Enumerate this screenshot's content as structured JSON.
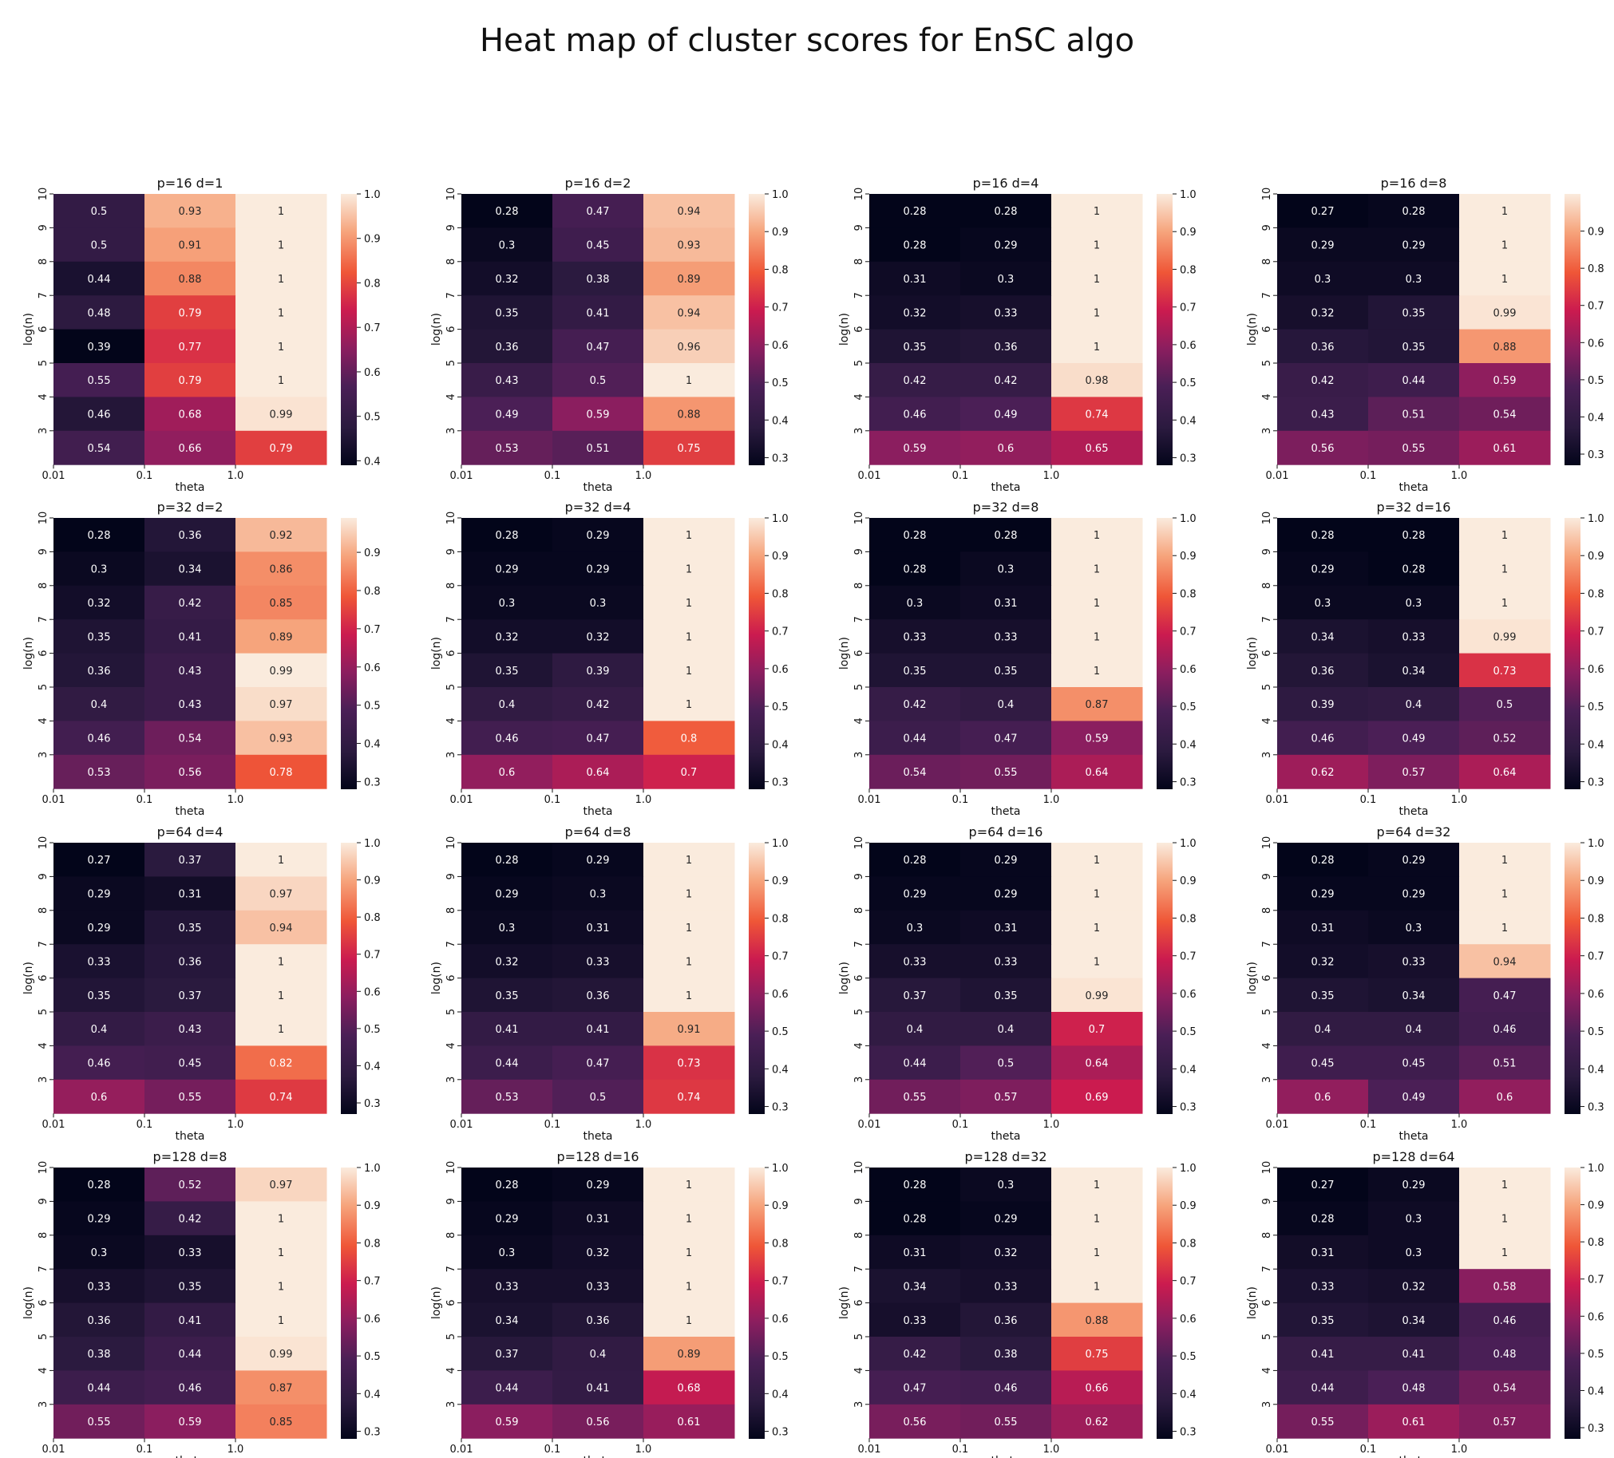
{
  "figure": {
    "title": "Heat map of cluster scores for EnSC algo"
  },
  "chart_data": [
    {
      "type": "heatmap",
      "title": "p=16 d=1",
      "xlabel": "theta",
      "ylabel": "log(n)",
      "x_tick_labels": [
        "0.01",
        "0.1",
        "1.0"
      ],
      "y_tick_labels": [
        "10",
        "9",
        "8",
        "7",
        "6",
        "5",
        "4",
        "3"
      ],
      "colorbar": {
        "min": 0.39,
        "max": 1.0,
        "ticks": [
          "0.4",
          "0.5",
          "0.6",
          "0.7",
          "0.8",
          "0.9",
          "1.0"
        ]
      },
      "values": [
        [
          0.5,
          0.93,
          1
        ],
        [
          0.5,
          0.91,
          1
        ],
        [
          0.44,
          0.88,
          1
        ],
        [
          0.48,
          0.79,
          1
        ],
        [
          0.39,
          0.77,
          1
        ],
        [
          0.55,
          0.79,
          1
        ],
        [
          0.46,
          0.68,
          0.99
        ],
        [
          0.54,
          0.66,
          0.79
        ]
      ]
    },
    {
      "type": "heatmap",
      "title": "p=16 d=2",
      "xlabel": "theta",
      "ylabel": "log(n)",
      "x_tick_labels": [
        "0.01",
        "0.1",
        "1.0"
      ],
      "y_tick_labels": [
        "10",
        "9",
        "8",
        "7",
        "6",
        "5",
        "4",
        "3"
      ],
      "colorbar": {
        "min": 0.28,
        "max": 1.0,
        "ticks": [
          "0.3",
          "0.4",
          "0.5",
          "0.6",
          "0.7",
          "0.8",
          "0.9",
          "1.0"
        ]
      },
      "values": [
        [
          0.28,
          0.47,
          0.94
        ],
        [
          0.3,
          0.45,
          0.93
        ],
        [
          0.32,
          0.38,
          0.89
        ],
        [
          0.35,
          0.41,
          0.94
        ],
        [
          0.36,
          0.47,
          0.96
        ],
        [
          0.43,
          0.5,
          1
        ],
        [
          0.49,
          0.59,
          0.88
        ],
        [
          0.53,
          0.51,
          0.75
        ]
      ]
    },
    {
      "type": "heatmap",
      "title": "p=16 d=4",
      "xlabel": "theta",
      "ylabel": "log(n)",
      "x_tick_labels": [
        "0.01",
        "0.1",
        "1.0"
      ],
      "y_tick_labels": [
        "10",
        "9",
        "8",
        "7",
        "6",
        "5",
        "4",
        "3"
      ],
      "colorbar": {
        "min": 0.28,
        "max": 1.0,
        "ticks": [
          "0.3",
          "0.4",
          "0.5",
          "0.6",
          "0.7",
          "0.8",
          "0.9",
          "1.0"
        ]
      },
      "values": [
        [
          0.28,
          0.28,
          1
        ],
        [
          0.28,
          0.29,
          1
        ],
        [
          0.31,
          0.3,
          1
        ],
        [
          0.32,
          0.33,
          1
        ],
        [
          0.35,
          0.36,
          1
        ],
        [
          0.42,
          0.42,
          0.98
        ],
        [
          0.46,
          0.49,
          0.74
        ],
        [
          0.59,
          0.6,
          0.65
        ]
      ]
    },
    {
      "type": "heatmap",
      "title": "p=16 d=8",
      "xlabel": "theta",
      "ylabel": "log(n)",
      "x_tick_labels": [
        "0.01",
        "0.1",
        "1.0"
      ],
      "y_tick_labels": [
        "10",
        "9",
        "8",
        "7",
        "6",
        "5",
        "4",
        "3"
      ],
      "colorbar": {
        "min": 0.27,
        "max": 1.0,
        "ticks": [
          "0.3",
          "0.4",
          "0.5",
          "0.6",
          "0.7",
          "0.8",
          "0.9"
        ]
      },
      "values": [
        [
          0.27,
          0.28,
          1
        ],
        [
          0.29,
          0.29,
          1
        ],
        [
          0.3,
          0.3,
          1
        ],
        [
          0.32,
          0.35,
          0.99
        ],
        [
          0.36,
          0.35,
          0.88
        ],
        [
          0.42,
          0.44,
          0.59
        ],
        [
          0.43,
          0.51,
          0.54
        ],
        [
          0.56,
          0.55,
          0.61
        ]
      ]
    },
    {
      "type": "heatmap",
      "title": "p=32 d=2",
      "xlabel": "theta",
      "ylabel": "log(n)",
      "x_tick_labels": [
        "0.01",
        "0.1",
        "1.0"
      ],
      "y_tick_labels": [
        "10",
        "9",
        "8",
        "7",
        "6",
        "5",
        "4",
        "3"
      ],
      "colorbar": {
        "min": 0.28,
        "max": 0.99,
        "ticks": [
          "0.3",
          "0.4",
          "0.5",
          "0.6",
          "0.7",
          "0.8",
          "0.9"
        ]
      },
      "values": [
        [
          0.28,
          0.36,
          0.92
        ],
        [
          0.3,
          0.34,
          0.86
        ],
        [
          0.32,
          0.42,
          0.85
        ],
        [
          0.35,
          0.41,
          0.89
        ],
        [
          0.36,
          0.43,
          0.99
        ],
        [
          0.4,
          0.43,
          0.97
        ],
        [
          0.46,
          0.54,
          0.93
        ],
        [
          0.53,
          0.56,
          0.78
        ]
      ]
    },
    {
      "type": "heatmap",
      "title": "p=32 d=4",
      "xlabel": "theta",
      "ylabel": "log(n)",
      "x_tick_labels": [
        "0.01",
        "0.1",
        "1.0"
      ],
      "y_tick_labels": [
        "10",
        "9",
        "8",
        "7",
        "6",
        "5",
        "4",
        "3"
      ],
      "colorbar": {
        "min": 0.28,
        "max": 1.0,
        "ticks": [
          "0.3",
          "0.4",
          "0.5",
          "0.6",
          "0.7",
          "0.8",
          "0.9",
          "1.0"
        ]
      },
      "values": [
        [
          0.28,
          0.29,
          1
        ],
        [
          0.29,
          0.29,
          1
        ],
        [
          0.3,
          0.3,
          1
        ],
        [
          0.32,
          0.32,
          1
        ],
        [
          0.35,
          0.39,
          1
        ],
        [
          0.4,
          0.42,
          1
        ],
        [
          0.46,
          0.47,
          0.8
        ],
        [
          0.6,
          0.64,
          0.7
        ]
      ]
    },
    {
      "type": "heatmap",
      "title": "p=32 d=8",
      "xlabel": "theta",
      "ylabel": "log(n)",
      "x_tick_labels": [
        "0.01",
        "0.1",
        "1.0"
      ],
      "y_tick_labels": [
        "10",
        "9",
        "8",
        "7",
        "6",
        "5",
        "4",
        "3"
      ],
      "colorbar": {
        "min": 0.28,
        "max": 1.0,
        "ticks": [
          "0.3",
          "0.4",
          "0.5",
          "0.6",
          "0.7",
          "0.8",
          "0.9",
          "1.0"
        ]
      },
      "values": [
        [
          0.28,
          0.28,
          1
        ],
        [
          0.28,
          0.3,
          1
        ],
        [
          0.3,
          0.31,
          1
        ],
        [
          0.33,
          0.33,
          1
        ],
        [
          0.35,
          0.35,
          1
        ],
        [
          0.42,
          0.4,
          0.87
        ],
        [
          0.44,
          0.47,
          0.59
        ],
        [
          0.54,
          0.55,
          0.64
        ]
      ]
    },
    {
      "type": "heatmap",
      "title": "p=32 d=16",
      "xlabel": "theta",
      "ylabel": "log(n)",
      "x_tick_labels": [
        "0.01",
        "0.1",
        "1.0"
      ],
      "y_tick_labels": [
        "10",
        "9",
        "8",
        "7",
        "6",
        "5",
        "4",
        "3"
      ],
      "colorbar": {
        "min": 0.28,
        "max": 1.0,
        "ticks": [
          "0.3",
          "0.4",
          "0.5",
          "0.6",
          "0.7",
          "0.8",
          "0.9",
          "1.0"
        ]
      },
      "values": [
        [
          0.28,
          0.28,
          1
        ],
        [
          0.29,
          0.28,
          1
        ],
        [
          0.3,
          0.3,
          1
        ],
        [
          0.34,
          0.33,
          0.99
        ],
        [
          0.36,
          0.34,
          0.73
        ],
        [
          0.39,
          0.4,
          0.5
        ],
        [
          0.46,
          0.49,
          0.52
        ],
        [
          0.62,
          0.57,
          0.64
        ]
      ]
    },
    {
      "type": "heatmap",
      "title": "p=64 d=4",
      "xlabel": "theta",
      "ylabel": "log(n)",
      "x_tick_labels": [
        "0.01",
        "0.1",
        "1.0"
      ],
      "y_tick_labels": [
        "10",
        "9",
        "8",
        "7",
        "6",
        "5",
        "4",
        "3"
      ],
      "colorbar": {
        "min": 0.27,
        "max": 1.0,
        "ticks": [
          "0.3",
          "0.4",
          "0.5",
          "0.6",
          "0.7",
          "0.8",
          "0.9",
          "1.0"
        ]
      },
      "values": [
        [
          0.27,
          0.37,
          1
        ],
        [
          0.29,
          0.31,
          0.97
        ],
        [
          0.29,
          0.35,
          0.94
        ],
        [
          0.33,
          0.36,
          1
        ],
        [
          0.35,
          0.37,
          1
        ],
        [
          0.4,
          0.43,
          1
        ],
        [
          0.46,
          0.45,
          0.82
        ],
        [
          0.6,
          0.55,
          0.74
        ]
      ]
    },
    {
      "type": "heatmap",
      "title": "p=64 d=8",
      "xlabel": "theta",
      "ylabel": "log(n)",
      "x_tick_labels": [
        "0.01",
        "0.1",
        "1.0"
      ],
      "y_tick_labels": [
        "10",
        "9",
        "8",
        "7",
        "6",
        "5",
        "4",
        "3"
      ],
      "colorbar": {
        "min": 0.28,
        "max": 1.0,
        "ticks": [
          "0.3",
          "0.4",
          "0.5",
          "0.6",
          "0.7",
          "0.8",
          "0.9",
          "1.0"
        ]
      },
      "values": [
        [
          0.28,
          0.29,
          1
        ],
        [
          0.29,
          0.3,
          1
        ],
        [
          0.3,
          0.31,
          1
        ],
        [
          0.32,
          0.33,
          1
        ],
        [
          0.35,
          0.36,
          1
        ],
        [
          0.41,
          0.41,
          0.91
        ],
        [
          0.44,
          0.47,
          0.73
        ],
        [
          0.53,
          0.5,
          0.74
        ]
      ]
    },
    {
      "type": "heatmap",
      "title": "p=64 d=16",
      "xlabel": "theta",
      "ylabel": "log(n)",
      "x_tick_labels": [
        "0.01",
        "0.1",
        "1.0"
      ],
      "y_tick_labels": [
        "10",
        "9",
        "8",
        "7",
        "6",
        "5",
        "4",
        "3"
      ],
      "colorbar": {
        "min": 0.28,
        "max": 1.0,
        "ticks": [
          "0.3",
          "0.4",
          "0.5",
          "0.6",
          "0.7",
          "0.8",
          "0.9",
          "1.0"
        ]
      },
      "values": [
        [
          0.28,
          0.29,
          1
        ],
        [
          0.29,
          0.29,
          1
        ],
        [
          0.3,
          0.31,
          1
        ],
        [
          0.33,
          0.33,
          1
        ],
        [
          0.37,
          0.35,
          0.99
        ],
        [
          0.4,
          0.4,
          0.7
        ],
        [
          0.44,
          0.5,
          0.64
        ],
        [
          0.55,
          0.57,
          0.69
        ]
      ]
    },
    {
      "type": "heatmap",
      "title": "p=64 d=32",
      "xlabel": "theta",
      "ylabel": "log(n)",
      "x_tick_labels": [
        "0.01",
        "0.1",
        "1.0"
      ],
      "y_tick_labels": [
        "10",
        "9",
        "8",
        "7",
        "6",
        "5",
        "4",
        "3"
      ],
      "colorbar": {
        "min": 0.28,
        "max": 1.0,
        "ticks": [
          "0.3",
          "0.4",
          "0.5",
          "0.6",
          "0.7",
          "0.8",
          "0.9",
          "1.0"
        ]
      },
      "values": [
        [
          0.28,
          0.29,
          1
        ],
        [
          0.29,
          0.29,
          1
        ],
        [
          0.31,
          0.3,
          1
        ],
        [
          0.32,
          0.33,
          0.94
        ],
        [
          0.35,
          0.34,
          0.47
        ],
        [
          0.4,
          0.4,
          0.46
        ],
        [
          0.45,
          0.45,
          0.51
        ],
        [
          0.6,
          0.49,
          0.6
        ]
      ]
    },
    {
      "type": "heatmap",
      "title": "p=128 d=8",
      "xlabel": "theta",
      "ylabel": "log(n)",
      "x_tick_labels": [
        "0.01",
        "0.1",
        "1.0"
      ],
      "y_tick_labels": [
        "10",
        "9",
        "8",
        "7",
        "6",
        "5",
        "4",
        "3"
      ],
      "colorbar": {
        "min": 0.28,
        "max": 1.0,
        "ticks": [
          "0.3",
          "0.4",
          "0.5",
          "0.6",
          "0.7",
          "0.8",
          "0.9",
          "1.0"
        ]
      },
      "values": [
        [
          0.28,
          0.52,
          0.97
        ],
        [
          0.29,
          0.42,
          1
        ],
        [
          0.3,
          0.33,
          1
        ],
        [
          0.33,
          0.35,
          1
        ],
        [
          0.36,
          0.41,
          1
        ],
        [
          0.38,
          0.44,
          0.99
        ],
        [
          0.44,
          0.46,
          0.87
        ],
        [
          0.55,
          0.59,
          0.85
        ]
      ]
    },
    {
      "type": "heatmap",
      "title": "p=128 d=16",
      "xlabel": "theta",
      "ylabel": "log(n)",
      "x_tick_labels": [
        "0.01",
        "0.1",
        "1.0"
      ],
      "y_tick_labels": [
        "10",
        "9",
        "8",
        "7",
        "6",
        "5",
        "4",
        "3"
      ],
      "colorbar": {
        "min": 0.28,
        "max": 1.0,
        "ticks": [
          "0.3",
          "0.4",
          "0.5",
          "0.6",
          "0.7",
          "0.8",
          "0.9",
          "1.0"
        ]
      },
      "values": [
        [
          0.28,
          0.29,
          1
        ],
        [
          0.29,
          0.31,
          1
        ],
        [
          0.3,
          0.32,
          1
        ],
        [
          0.33,
          0.33,
          1
        ],
        [
          0.34,
          0.36,
          1
        ],
        [
          0.37,
          0.4,
          0.89
        ],
        [
          0.44,
          0.41,
          0.68
        ],
        [
          0.59,
          0.56,
          0.61
        ]
      ]
    },
    {
      "type": "heatmap",
      "title": "p=128 d=32",
      "xlabel": "theta",
      "ylabel": "log(n)",
      "x_tick_labels": [
        "0.01",
        "0.1",
        "1.0"
      ],
      "y_tick_labels": [
        "10",
        "9",
        "8",
        "7",
        "6",
        "5",
        "4",
        "3"
      ],
      "colorbar": {
        "min": 0.28,
        "max": 1.0,
        "ticks": [
          "0.3",
          "0.4",
          "0.5",
          "0.6",
          "0.7",
          "0.8",
          "0.9",
          "1.0"
        ]
      },
      "values": [
        [
          0.28,
          0.3,
          1
        ],
        [
          0.28,
          0.29,
          1
        ],
        [
          0.31,
          0.32,
          1
        ],
        [
          0.34,
          0.33,
          1
        ],
        [
          0.33,
          0.36,
          0.88
        ],
        [
          0.42,
          0.38,
          0.75
        ],
        [
          0.47,
          0.46,
          0.66
        ],
        [
          0.56,
          0.55,
          0.62
        ]
      ]
    },
    {
      "type": "heatmap",
      "title": "p=128 d=64",
      "xlabel": "theta",
      "ylabel": "log(n)",
      "x_tick_labels": [
        "0.01",
        "0.1",
        "1.0"
      ],
      "y_tick_labels": [
        "10",
        "9",
        "8",
        "7",
        "6",
        "5",
        "4",
        "3"
      ],
      "colorbar": {
        "min": 0.27,
        "max": 1.0,
        "ticks": [
          "0.3",
          "0.4",
          "0.5",
          "0.6",
          "0.7",
          "0.8",
          "0.9",
          "1.0"
        ]
      },
      "values": [
        [
          0.27,
          0.29,
          1
        ],
        [
          0.28,
          0.3,
          1
        ],
        [
          0.31,
          0.3,
          1
        ],
        [
          0.33,
          0.32,
          0.58
        ],
        [
          0.35,
          0.34,
          0.46
        ],
        [
          0.41,
          0.41,
          0.48
        ],
        [
          0.44,
          0.48,
          0.54
        ],
        [
          0.55,
          0.61,
          0.57
        ]
      ]
    }
  ]
}
